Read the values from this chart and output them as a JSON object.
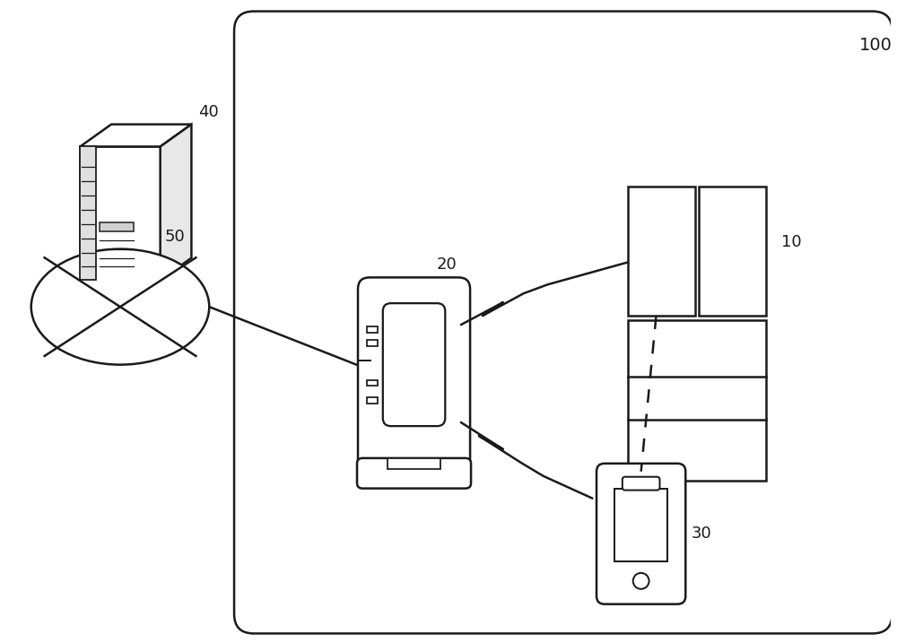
{
  "bg_color": "#ffffff",
  "line_color": "#1a1a1a",
  "fig_width": 10.0,
  "fig_height": 7.17,
  "dpi": 100,
  "label_40": "40",
  "label_10": "10",
  "label_20": "20",
  "label_30": "30",
  "label_50": "50",
  "label_100": "100"
}
